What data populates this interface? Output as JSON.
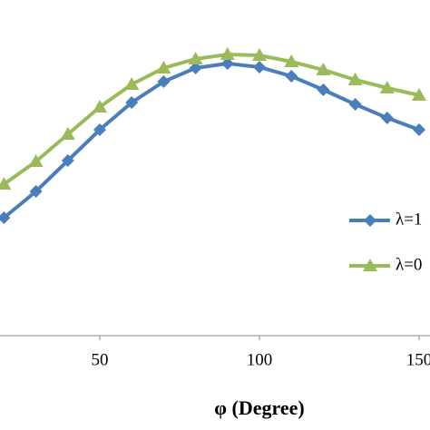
{
  "chart_data": {
    "type": "line",
    "x_label": "φ (Degree)",
    "x": [
      20,
      30,
      40,
      50,
      60,
      70,
      80,
      90,
      100,
      110,
      120,
      130,
      140,
      150
    ],
    "series": [
      {
        "name": "λ=1",
        "color": "#4a7ebb",
        "marker": "diamond",
        "values": [
          130,
          159,
          193,
          227,
          257,
          280,
          295,
          300,
          296,
          286,
          271,
          255,
          240,
          227
        ]
      },
      {
        "name": "λ=0",
        "color": "#9bbb59",
        "marker": "triangle",
        "values": [
          167,
          192,
          222,
          252,
          277,
          295,
          305,
          310,
          309,
          302,
          293,
          282,
          273,
          265
        ]
      }
    ],
    "xlim": [
      18.75,
      153.4
    ],
    "xticks": [
      50,
      100,
      150
    ],
    "ylim": [
      0,
      370
    ]
  }
}
